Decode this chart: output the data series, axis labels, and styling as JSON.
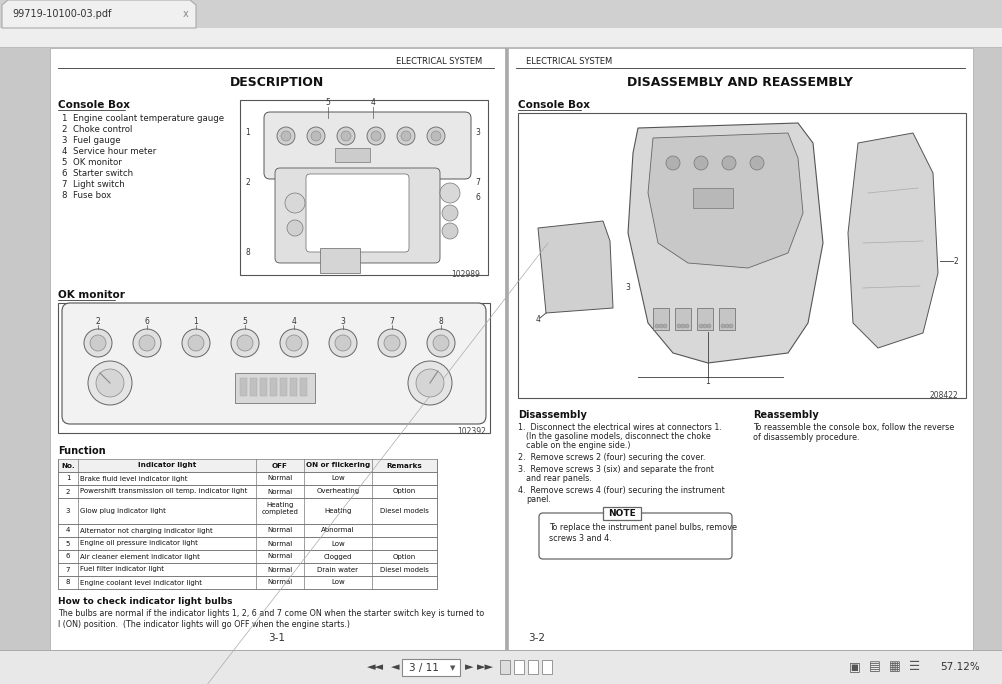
{
  "bg_color": "#c8c8c8",
  "page_bg": "#f5f5f0",
  "title_tab": "99719-10100-03.pdf",
  "left_page": {
    "header": "ELECTRICAL SYSTEM",
    "title": "DESCRIPTION",
    "console_box_label": "Console Box",
    "console_box_items": [
      "1  Engine coolant temperature gauge",
      "2  Choke control",
      "3  Fuel gauge",
      "4  Service hour meter",
      "5  OK monitor",
      "6  Starter switch",
      "7  Light switch",
      "8  Fuse box"
    ],
    "ok_monitor_label": "OK monitor",
    "function_label": "Function",
    "table_headers": [
      "No.",
      "Indicator light",
      "OFF",
      "ON or flickering",
      "Remarks"
    ],
    "table_rows": [
      [
        "1",
        "Brake fluid level indicator light",
        "Normal",
        "Low",
        ""
      ],
      [
        "2",
        "Powershift transmission oil temp. indicator light",
        "Normal",
        "Overheating",
        "Option"
      ],
      [
        "3",
        "Glow plug indicator light",
        "Heating\ncompleted",
        "Heating",
        "Diesel models"
      ],
      [
        "4",
        "Alternator not charging indicator light",
        "Normal",
        "Abnormal",
        ""
      ],
      [
        "5",
        "Engine oil pressure indicator light",
        "Normal",
        "Low",
        ""
      ],
      [
        "6",
        "Air cleaner element indicator light",
        "Normal",
        "Clogged",
        "Option"
      ],
      [
        "7",
        "Fuel filter indicator light",
        "Normal",
        "Drain water",
        "Diesel models"
      ],
      [
        "8",
        "Engine coolant level indicator light",
        "Normal",
        "Low",
        ""
      ]
    ],
    "how_to_check_title": "How to check indicator light bulbs",
    "how_to_check_text1": "The bulbs are normal if the indicator lights 1, 2, 6 and 7 come ON when the starter switch key is turned to",
    "how_to_check_text2": "I (ON) position.  (The indicator lights will go OFF when the engine starts.)",
    "page_num": "3-1",
    "img_code1": "102989",
    "img_code2": "102392"
  },
  "right_page": {
    "header": "ELECTRICAL SYSTEM",
    "title": "DISASSEMBLY AND REASSEMBLY",
    "console_box_label": "Console Box",
    "disassembly_title": "Disassembly",
    "disassembly_items": [
      [
        "1.  Disconnect the electrical wires at connectors 1.",
        "(In the gasoline models, disconnect the choke",
        "cable on the engine side.)"
      ],
      [
        "2.  Remove screws 2 (four) securing the cover."
      ],
      [
        "3.  Remove screws 3 (six) and separate the front",
        "and rear panels."
      ],
      [
        "4.  Remove screws 4 (four) securing the instrument",
        "panel."
      ]
    ],
    "reassembly_title": "Reassembly",
    "reassembly_text": [
      "To reassemble the console box, follow the reverse",
      "of disassembly procedure."
    ],
    "note_title": "NOTE",
    "note_text": [
      "To replace the instrument panel bulbs, remove",
      "screws 3 and 4."
    ],
    "page_num": "3-2",
    "img_code": "208422"
  },
  "bottom_bar": {
    "nav_text": "3 / 11",
    "zoom_text": "57.12%"
  }
}
